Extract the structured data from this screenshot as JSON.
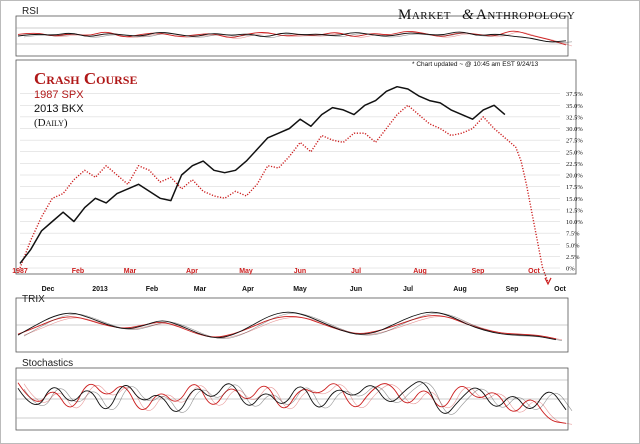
{
  "header": {
    "brand_left": "Market",
    "brand_right": "Anthropology",
    "brand_mark": "&",
    "updated_note": "* Chart updated ~ @ 10:45 am EST 9/24/13"
  },
  "legend": {
    "title": "Crash Course",
    "series_1": "1987 SPX",
    "series_2": "2013 BKX",
    "frequency": "(Daily)"
  },
  "panels": {
    "rsi_label": "RSI",
    "trix_label": "TRIX",
    "stochastics_label": "Stochastics"
  },
  "colors": {
    "spx_1987": "#cc1f1f",
    "bkx_2013": "#111111",
    "grid": "#9a9a9a",
    "background": "#ffffff",
    "border": "#555555"
  },
  "chart_data": [
    {
      "type": "line",
      "title": "Crash Course",
      "y_axis": "right",
      "ylim": [
        0,
        37.5
      ],
      "y_tick_labels": [
        "37.5%",
        "35.0%",
        "32.5%",
        "30.0%",
        "27.5%",
        "25.0%",
        "22.5%",
        "20.0%",
        "17.5%",
        "15.0%",
        "12.5%",
        "10.0%",
        "7.5%",
        "5.0%",
        "2.5%",
        "0%"
      ],
      "x_labels_1987": [
        "1987",
        "Feb",
        "Mar",
        "Apr",
        "May",
        "Jun",
        "Jul",
        "Aug",
        "Sep",
        "Oct"
      ],
      "x_labels_2013": [
        "Dec",
        "2013",
        "Feb",
        "Mar",
        "Apr",
        "May",
        "Jun",
        "Jul",
        "Aug",
        "Sep",
        "Oct"
      ],
      "series": [
        {
          "name": "1987 SPX",
          "style": "dotted",
          "color": "#cc1f1f",
          "points": [
            [
              0,
              0
            ],
            [
              4,
              6
            ],
            [
              8,
              11
            ],
            [
              12,
              15
            ],
            [
              16,
              16
            ],
            [
              20,
              19
            ],
            [
              24,
              21
            ],
            [
              28,
              19.5
            ],
            [
              32,
              22
            ],
            [
              36,
              20
            ],
            [
              40,
              18
            ],
            [
              44,
              22
            ],
            [
              48,
              21
            ],
            [
              52,
              18.5
            ],
            [
              56,
              19.5
            ],
            [
              60,
              17
            ],
            [
              64,
              19
            ],
            [
              68,
              16.5
            ],
            [
              72,
              15.5
            ],
            [
              76,
              15
            ],
            [
              80,
              16.5
            ],
            [
              84,
              15.5
            ],
            [
              88,
              18
            ],
            [
              92,
              22
            ],
            [
              96,
              21.5
            ],
            [
              100,
              24
            ],
            [
              104,
              27
            ],
            [
              108,
              25
            ],
            [
              112,
              28.5
            ],
            [
              116,
              27.5
            ],
            [
              120,
              27
            ],
            [
              124,
              29
            ],
            [
              128,
              29
            ],
            [
              132,
              27
            ],
            [
              136,
              30
            ],
            [
              140,
              33
            ],
            [
              144,
              35
            ],
            [
              148,
              33
            ],
            [
              152,
              31
            ],
            [
              156,
              30
            ],
            [
              160,
              28.5
            ],
            [
              164,
              29
            ],
            [
              168,
              30
            ],
            [
              172,
              32.5
            ],
            [
              176,
              30
            ],
            [
              180,
              28
            ],
            [
              184,
              26
            ],
            [
              186,
              23
            ],
            [
              188,
              18
            ],
            [
              190,
              12
            ],
            [
              192,
              6
            ],
            [
              194,
              0
            ],
            [
              196,
              -3
            ]
          ]
        },
        {
          "name": "2013 BKX",
          "style": "solid",
          "color": "#111111",
          "points": [
            [
              0,
              1
            ],
            [
              4,
              4
            ],
            [
              8,
              8
            ],
            [
              12,
              10
            ],
            [
              16,
              12
            ],
            [
              20,
              10
            ],
            [
              24,
              13
            ],
            [
              28,
              15
            ],
            [
              32,
              14
            ],
            [
              36,
              16
            ],
            [
              40,
              17
            ],
            [
              44,
              18
            ],
            [
              48,
              16.5
            ],
            [
              52,
              15
            ],
            [
              56,
              14.5
            ],
            [
              60,
              20
            ],
            [
              64,
              22
            ],
            [
              68,
              23
            ],
            [
              72,
              21
            ],
            [
              76,
              20.5
            ],
            [
              80,
              21
            ],
            [
              84,
              23
            ],
            [
              88,
              25.5
            ],
            [
              92,
              28
            ],
            [
              96,
              29
            ],
            [
              100,
              30
            ],
            [
              104,
              32
            ],
            [
              108,
              30.5
            ],
            [
              112,
              33
            ],
            [
              116,
              34.5
            ],
            [
              120,
              34
            ],
            [
              124,
              33
            ],
            [
              128,
              35
            ],
            [
              132,
              36
            ],
            [
              136,
              38
            ],
            [
              140,
              39
            ],
            [
              144,
              38.5
            ],
            [
              148,
              37
            ],
            [
              152,
              36
            ],
            [
              156,
              35.5
            ],
            [
              160,
              34
            ],
            [
              164,
              33
            ],
            [
              168,
              32
            ],
            [
              172,
              34
            ],
            [
              176,
              35
            ],
            [
              180,
              33
            ]
          ]
        }
      ]
    },
    {
      "type": "line",
      "title": "RSI",
      "series": [
        {
          "name": "1987 SPX",
          "color": "#cc1f1f",
          "values": [
            0.55,
            0.62,
            0.48,
            0.58,
            0.5,
            0.66,
            0.44,
            0.56,
            0.61,
            0.47,
            0.53,
            0.59,
            0.42,
            0.57,
            0.63,
            0.49,
            0.55,
            0.51,
            0.64,
            0.45,
            0.6,
            0.52,
            0.67,
            0.58,
            0.46,
            0.62,
            0.55,
            0.48,
            0.7,
            0.52,
            0.4,
            0.22
          ]
        },
        {
          "name": "2013 BKX",
          "color": "#111111",
          "values": [
            0.5,
            0.57,
            0.52,
            0.61,
            0.46,
            0.59,
            0.53,
            0.49,
            0.64,
            0.55,
            0.47,
            0.6,
            0.51,
            0.58,
            0.45,
            0.62,
            0.53,
            0.57,
            0.49,
            0.63,
            0.54,
            0.48,
            0.61,
            0.56,
            0.52,
            0.66,
            0.5,
            0.57,
            0.49,
            0.44,
            0.3,
            0.35
          ]
        }
      ]
    },
    {
      "type": "line",
      "title": "TRIX",
      "series": [
        {
          "name": "1987 SPX",
          "color": "#cc1f1f",
          "values": [
            0.3,
            0.45,
            0.62,
            0.7,
            0.6,
            0.48,
            0.42,
            0.5,
            0.58,
            0.46,
            0.3,
            0.22,
            0.3,
            0.45,
            0.62,
            0.7,
            0.66,
            0.52,
            0.38,
            0.3,
            0.36,
            0.48,
            0.62,
            0.72,
            0.68,
            0.52,
            0.4,
            0.32,
            0.3,
            0.28,
            0.2
          ]
        },
        {
          "name": "2013 BKX",
          "color": "#111111",
          "values": [
            0.28,
            0.5,
            0.7,
            0.78,
            0.66,
            0.5,
            0.4,
            0.48,
            0.62,
            0.5,
            0.32,
            0.2,
            0.28,
            0.48,
            0.7,
            0.8,
            0.72,
            0.55,
            0.38,
            0.28,
            0.34,
            0.52,
            0.7,
            0.8,
            0.72,
            0.52,
            0.38,
            0.3,
            0.28,
            0.26,
            0.18
          ]
        }
      ]
    },
    {
      "type": "line",
      "title": "Stochastics",
      "series": [
        {
          "name": "1987 SPX",
          "color": "#cc1f1f",
          "values": [
            0.8,
            0.3,
            0.75,
            0.2,
            0.9,
            0.5,
            0.85,
            0.15,
            0.7,
            0.35,
            0.92,
            0.25,
            0.8,
            0.4,
            0.88,
            0.18,
            0.75,
            0.55,
            0.9,
            0.22,
            0.68,
            0.85,
            0.3,
            0.78,
            0.2,
            0.86,
            0.45,
            0.7,
            0.15,
            0.6,
            0.1,
            0.05
          ]
        },
        {
          "name": "2013 BKX",
          "color": "#111111",
          "values": [
            0.7,
            0.2,
            0.85,
            0.35,
            0.78,
            0.15,
            0.9,
            0.4,
            0.65,
            0.12,
            0.8,
            0.45,
            0.92,
            0.25,
            0.7,
            0.3,
            0.88,
            0.2,
            0.75,
            0.5,
            0.85,
            0.35,
            0.7,
            0.9,
            0.1,
            0.5,
            0.8,
            0.25,
            0.65,
            0.2,
            0.75,
            0.3
          ]
        }
      ]
    }
  ]
}
